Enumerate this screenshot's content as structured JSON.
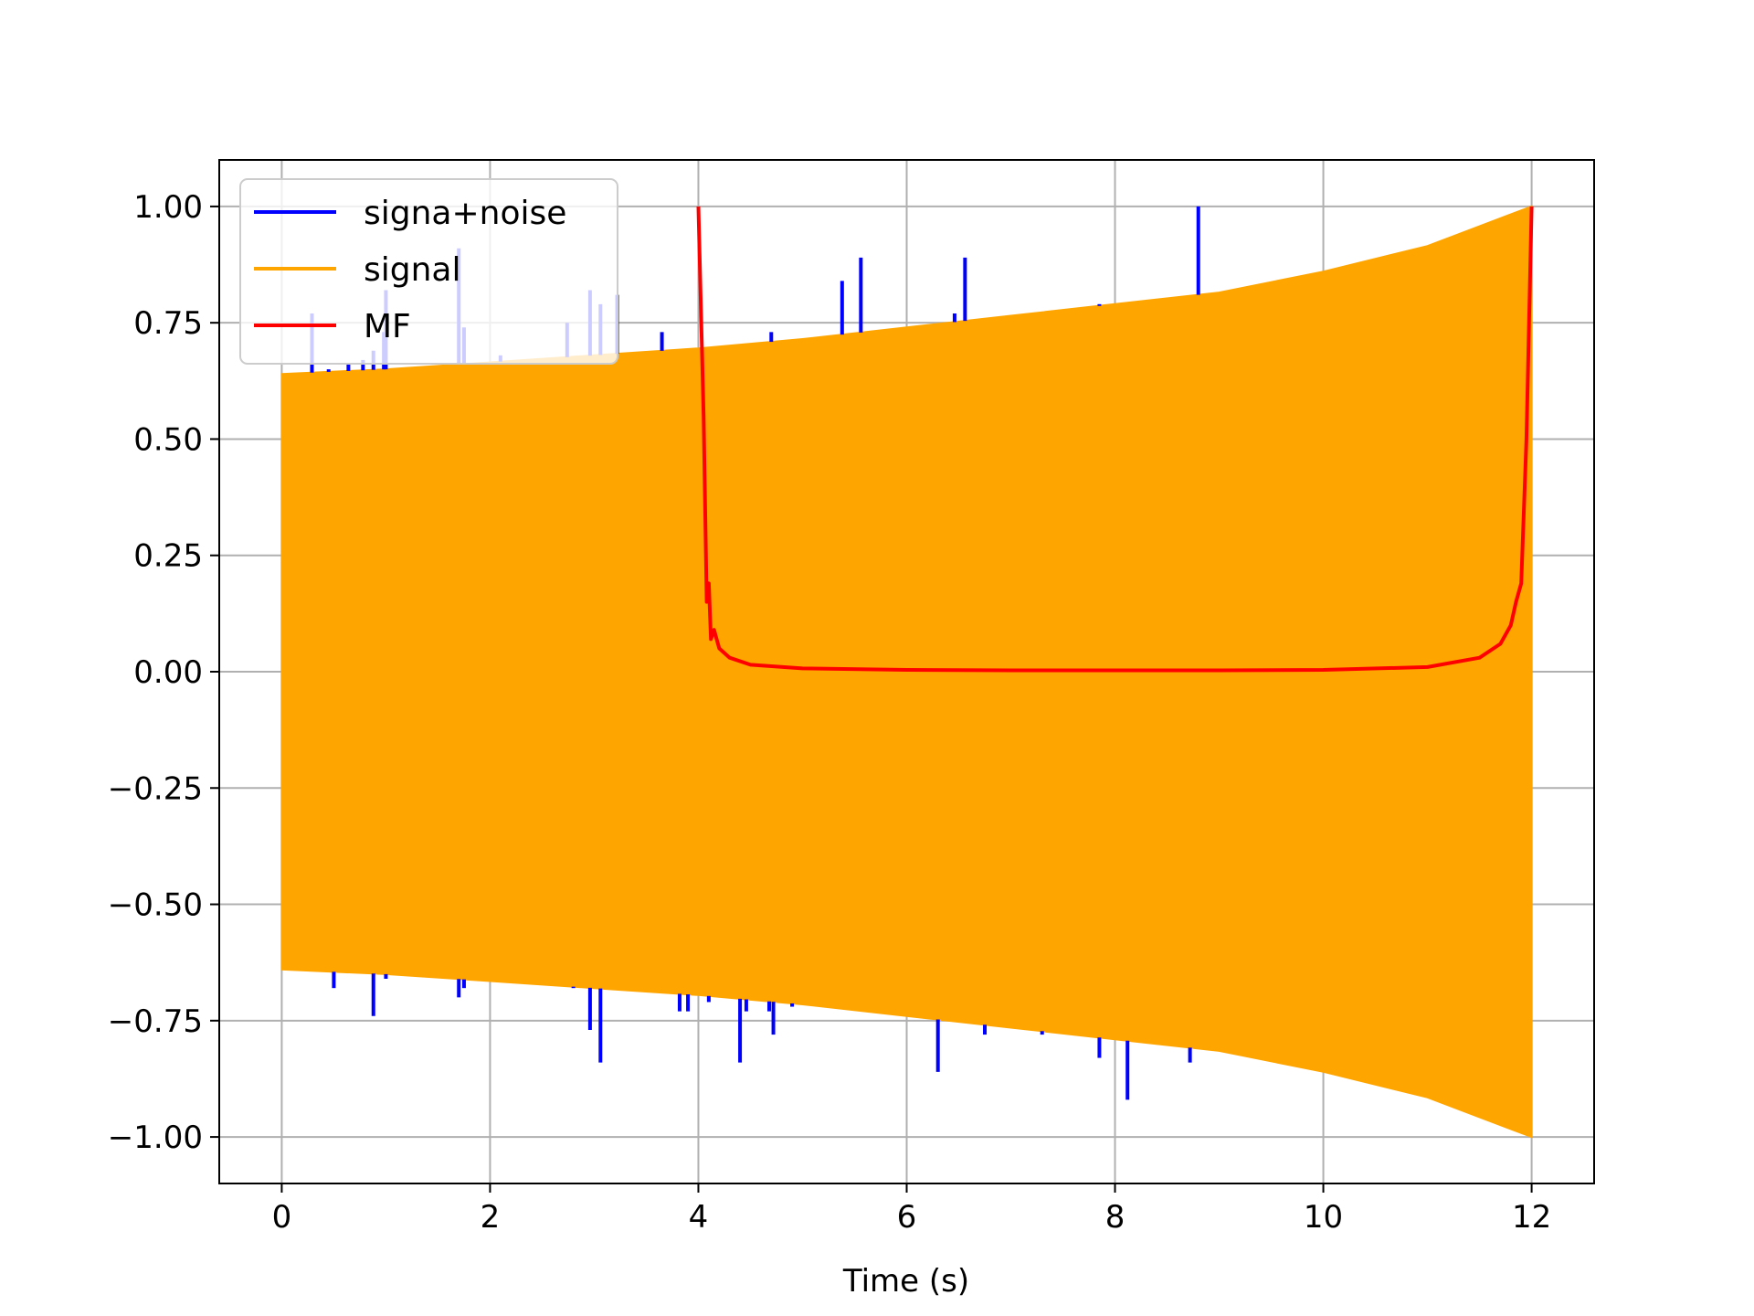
{
  "chart_data": {
    "type": "line",
    "title": "",
    "xlabel": "Time (s)",
    "ylabel": "",
    "xlim": [
      -0.6,
      12.6
    ],
    "ylim": [
      -1.1,
      1.1
    ],
    "grid": true,
    "legend_position": "top-left",
    "x_ticks": [
      0,
      2,
      4,
      6,
      8,
      10,
      12
    ],
    "x_tick_labels": [
      "0",
      "2",
      "4",
      "6",
      "8",
      "10",
      "12"
    ],
    "y_ticks": [
      1.0,
      0.75,
      0.5,
      0.25,
      0.0,
      -0.25,
      -0.5,
      -0.75,
      -1.0
    ],
    "y_tick_labels": [
      "1.00",
      "0.75",
      "0.50",
      "0.25",
      "0.00",
      "−0.25",
      "−0.50",
      "−0.75",
      "−1.00"
    ],
    "series": [
      {
        "name": "signa+noise",
        "color": "#0000ff",
        "style": "noise spikes around the signal envelope",
        "spike_tops": [
          [
            0.29,
            0.77
          ],
          [
            0.45,
            0.65
          ],
          [
            0.64,
            0.66
          ],
          [
            0.78,
            0.67
          ],
          [
            0.88,
            0.69
          ],
          [
            0.98,
            0.73
          ],
          [
            1.0,
            0.82
          ],
          [
            1.7,
            0.91
          ],
          [
            1.75,
            0.74
          ],
          [
            2.1,
            0.68
          ],
          [
            2.74,
            0.75
          ],
          [
            2.96,
            0.82
          ],
          [
            3.06,
            0.79
          ],
          [
            3.22,
            0.81
          ],
          [
            3.65,
            0.73
          ],
          [
            4.7,
            0.73
          ],
          [
            5.38,
            0.84
          ],
          [
            5.56,
            0.89
          ],
          [
            6.46,
            0.77
          ],
          [
            6.56,
            0.89
          ],
          [
            7.85,
            0.79
          ],
          [
            8.8,
            1.0
          ]
        ],
        "spike_bottoms": [
          [
            0.5,
            -0.68
          ],
          [
            0.88,
            -0.74
          ],
          [
            1.0,
            -0.66
          ],
          [
            1.7,
            -0.7
          ],
          [
            1.75,
            -0.68
          ],
          [
            2.8,
            -0.68
          ],
          [
            2.96,
            -0.77
          ],
          [
            3.06,
            -0.84
          ],
          [
            3.82,
            -0.73
          ],
          [
            3.9,
            -0.73
          ],
          [
            4.1,
            -0.71
          ],
          [
            4.4,
            -0.84
          ],
          [
            4.46,
            -0.73
          ],
          [
            4.68,
            -0.73
          ],
          [
            4.72,
            -0.78
          ],
          [
            4.9,
            -0.72
          ],
          [
            6.3,
            -0.86
          ],
          [
            6.75,
            -0.78
          ],
          [
            7.3,
            -0.78
          ],
          [
            7.85,
            -0.83
          ],
          [
            8.12,
            -0.92
          ],
          [
            8.72,
            -0.84
          ]
        ]
      },
      {
        "name": "signal",
        "color": "#ffa500",
        "style": "dense chirp oscillation filled between envelope",
        "x_range": [
          0,
          12
        ],
        "envelope": [
          [
            0,
            0.64
          ],
          [
            1,
            0.65
          ],
          [
            2,
            0.665
          ],
          [
            3,
            0.68
          ],
          [
            4,
            0.695
          ],
          [
            5,
            0.715
          ],
          [
            6,
            0.74
          ],
          [
            7,
            0.765
          ],
          [
            8,
            0.79
          ],
          [
            9,
            0.815
          ],
          [
            10,
            0.86
          ],
          [
            11,
            0.915
          ],
          [
            12,
            1.0
          ]
        ]
      },
      {
        "name": "MF",
        "color": "#ff0000",
        "style": "matched filter output",
        "points": [
          [
            4.0,
            1.0
          ],
          [
            4.05,
            0.55
          ],
          [
            4.08,
            0.15
          ],
          [
            4.1,
            0.19
          ],
          [
            4.12,
            0.07
          ],
          [
            4.15,
            0.09
          ],
          [
            4.2,
            0.05
          ],
          [
            4.3,
            0.03
          ],
          [
            4.5,
            0.015
          ],
          [
            5.0,
            0.007
          ],
          [
            6.0,
            0.004
          ],
          [
            7.0,
            0.003
          ],
          [
            8.0,
            0.003
          ],
          [
            9.0,
            0.003
          ],
          [
            10.0,
            0.004
          ],
          [
            11.0,
            0.01
          ],
          [
            11.5,
            0.03
          ],
          [
            11.7,
            0.06
          ],
          [
            11.8,
            0.1
          ],
          [
            11.85,
            0.15
          ],
          [
            11.9,
            0.19
          ],
          [
            11.95,
            0.5
          ],
          [
            12.0,
            1.0
          ]
        ]
      }
    ]
  }
}
